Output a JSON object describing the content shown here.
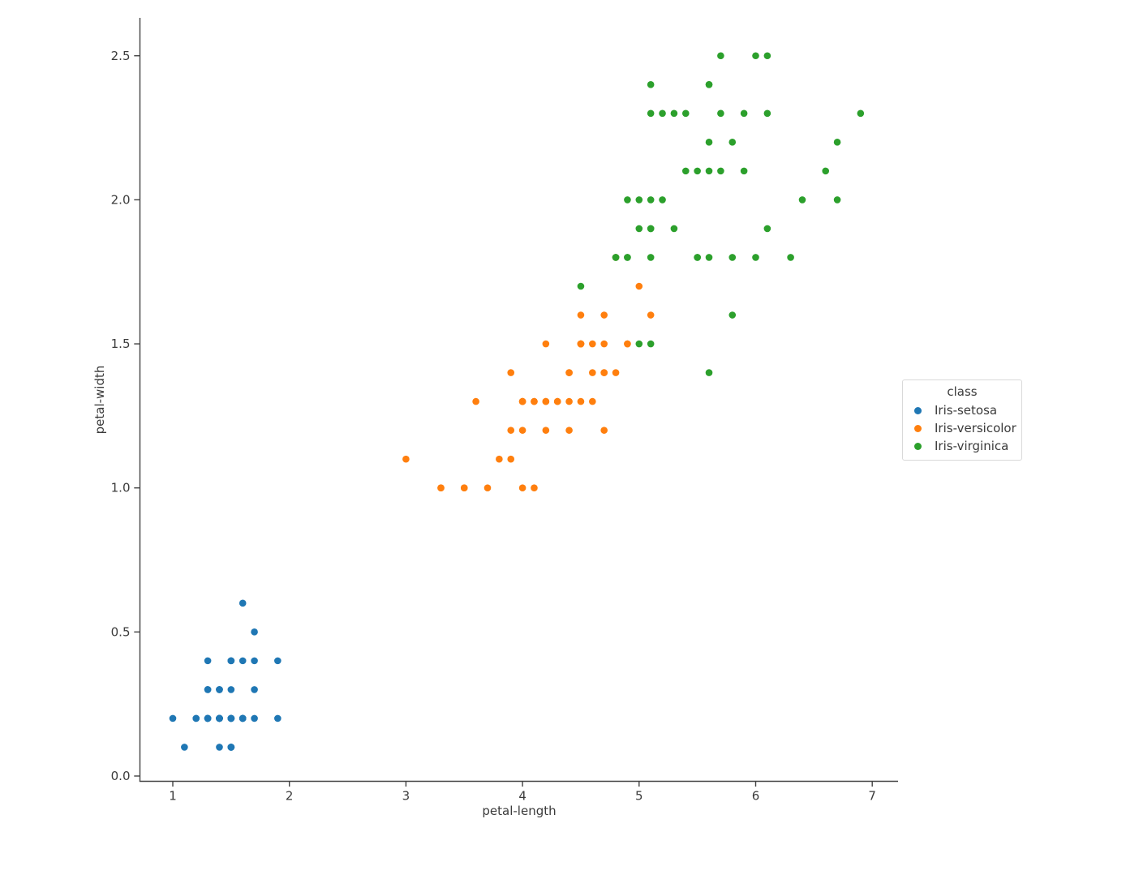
{
  "figure": {
    "background": "#ffffff",
    "text_color": "#3b3b3b",
    "spine_color": "#424242"
  },
  "legend": {
    "title": "class",
    "entries": [
      {
        "label": "Iris-setosa",
        "color": "#1f77b4"
      },
      {
        "label": "Iris-versicolor",
        "color": "#ff7f0e"
      },
      {
        "label": "Iris-virginica",
        "color": "#2ca02c"
      }
    ]
  },
  "chart_data": {
    "type": "scatter",
    "title": "",
    "xlabel": "petal-length",
    "ylabel": "petal-width",
    "xlim": [
      0.71,
      7.22
    ],
    "ylim": [
      -0.02,
      2.63
    ],
    "x_ticks": [
      1,
      2,
      3,
      4,
      5,
      6,
      7
    ],
    "x_tick_labels": [
      "1",
      "2",
      "3",
      "4",
      "5",
      "6",
      "7"
    ],
    "y_ticks": [
      0.0,
      0.5,
      1.0,
      1.5,
      2.0,
      2.5
    ],
    "y_tick_labels": [
      "0.0",
      "0.5",
      "1.0",
      "1.5",
      "2.0",
      "2.5"
    ],
    "grid": false,
    "legend_title": "class",
    "legend_position": "right",
    "series": [
      {
        "name": "Iris-setosa",
        "color": "#1f77b4",
        "points": [
          [
            1.4,
            0.2
          ],
          [
            1.4,
            0.2
          ],
          [
            1.3,
            0.2
          ],
          [
            1.5,
            0.2
          ],
          [
            1.4,
            0.2
          ],
          [
            1.7,
            0.4
          ],
          [
            1.4,
            0.3
          ],
          [
            1.5,
            0.2
          ],
          [
            1.4,
            0.2
          ],
          [
            1.5,
            0.1
          ],
          [
            1.5,
            0.2
          ],
          [
            1.6,
            0.2
          ],
          [
            1.4,
            0.1
          ],
          [
            1.1,
            0.1
          ],
          [
            1.2,
            0.2
          ],
          [
            1.5,
            0.4
          ],
          [
            1.3,
            0.4
          ],
          [
            1.4,
            0.3
          ],
          [
            1.7,
            0.3
          ],
          [
            1.5,
            0.3
          ],
          [
            1.7,
            0.2
          ],
          [
            1.5,
            0.4
          ],
          [
            1.0,
            0.2
          ],
          [
            1.7,
            0.5
          ],
          [
            1.9,
            0.2
          ],
          [
            1.6,
            0.2
          ],
          [
            1.6,
            0.4
          ],
          [
            1.5,
            0.2
          ],
          [
            1.4,
            0.2
          ],
          [
            1.6,
            0.2
          ],
          [
            1.6,
            0.2
          ],
          [
            1.5,
            0.4
          ],
          [
            1.5,
            0.1
          ],
          [
            1.4,
            0.2
          ],
          [
            1.5,
            0.1
          ],
          [
            1.2,
            0.2
          ],
          [
            1.3,
            0.2
          ],
          [
            1.5,
            0.1
          ],
          [
            1.3,
            0.2
          ],
          [
            1.5,
            0.2
          ],
          [
            1.3,
            0.3
          ],
          [
            1.3,
            0.3
          ],
          [
            1.3,
            0.2
          ],
          [
            1.6,
            0.6
          ],
          [
            1.9,
            0.4
          ],
          [
            1.4,
            0.3
          ],
          [
            1.6,
            0.2
          ],
          [
            1.4,
            0.2
          ],
          [
            1.5,
            0.2
          ],
          [
            1.4,
            0.2
          ]
        ]
      },
      {
        "name": "Iris-versicolor",
        "color": "#ff7f0e",
        "points": [
          [
            4.7,
            1.4
          ],
          [
            4.5,
            1.5
          ],
          [
            4.9,
            1.5
          ],
          [
            4.0,
            1.3
          ],
          [
            4.6,
            1.5
          ],
          [
            4.5,
            1.3
          ],
          [
            4.7,
            1.6
          ],
          [
            3.3,
            1.0
          ],
          [
            4.6,
            1.3
          ],
          [
            3.9,
            1.4
          ],
          [
            3.5,
            1.0
          ],
          [
            4.2,
            1.5
          ],
          [
            4.0,
            1.0
          ],
          [
            4.7,
            1.4
          ],
          [
            3.6,
            1.3
          ],
          [
            4.4,
            1.4
          ],
          [
            4.5,
            1.5
          ],
          [
            4.1,
            1.0
          ],
          [
            4.5,
            1.5
          ],
          [
            3.9,
            1.1
          ],
          [
            4.8,
            1.8
          ],
          [
            4.0,
            1.3
          ],
          [
            4.9,
            1.5
          ],
          [
            4.7,
            1.2
          ],
          [
            4.3,
            1.3
          ],
          [
            4.4,
            1.4
          ],
          [
            4.8,
            1.4
          ],
          [
            5.0,
            1.7
          ],
          [
            4.5,
            1.5
          ],
          [
            3.5,
            1.0
          ],
          [
            3.8,
            1.1
          ],
          [
            3.7,
            1.0
          ],
          [
            3.9,
            1.2
          ],
          [
            5.1,
            1.6
          ],
          [
            4.5,
            1.5
          ],
          [
            4.5,
            1.6
          ],
          [
            4.7,
            1.5
          ],
          [
            4.4,
            1.3
          ],
          [
            4.1,
            1.3
          ],
          [
            4.0,
            1.3
          ],
          [
            4.4,
            1.2
          ],
          [
            4.6,
            1.4
          ],
          [
            4.0,
            1.2
          ],
          [
            3.3,
            1.0
          ],
          [
            4.2,
            1.3
          ],
          [
            4.2,
            1.2
          ],
          [
            4.2,
            1.3
          ],
          [
            4.3,
            1.3
          ],
          [
            3.0,
            1.1
          ],
          [
            4.1,
            1.3
          ]
        ]
      },
      {
        "name": "Iris-virginica",
        "color": "#2ca02c",
        "points": [
          [
            6.0,
            2.5
          ],
          [
            5.1,
            1.9
          ],
          [
            5.9,
            2.1
          ],
          [
            5.6,
            1.8
          ],
          [
            5.8,
            2.2
          ],
          [
            6.6,
            2.1
          ],
          [
            4.5,
            1.7
          ],
          [
            6.3,
            1.8
          ],
          [
            5.8,
            1.8
          ],
          [
            6.1,
            2.5
          ],
          [
            5.1,
            2.0
          ],
          [
            5.3,
            1.9
          ],
          [
            5.5,
            2.1
          ],
          [
            5.0,
            2.0
          ],
          [
            5.1,
            2.4
          ],
          [
            5.3,
            2.3
          ],
          [
            5.5,
            1.8
          ],
          [
            6.7,
            2.2
          ],
          [
            6.9,
            2.3
          ],
          [
            5.0,
            1.5
          ],
          [
            5.7,
            2.3
          ],
          [
            4.9,
            2.0
          ],
          [
            6.7,
            2.0
          ],
          [
            4.9,
            1.8
          ],
          [
            5.7,
            2.1
          ],
          [
            6.0,
            1.8
          ],
          [
            4.8,
            1.8
          ],
          [
            4.9,
            1.8
          ],
          [
            5.6,
            2.1
          ],
          [
            5.8,
            1.6
          ],
          [
            6.1,
            1.9
          ],
          [
            6.4,
            2.0
          ],
          [
            5.6,
            2.2
          ],
          [
            5.1,
            1.5
          ],
          [
            5.6,
            1.4
          ],
          [
            6.1,
            2.3
          ],
          [
            5.6,
            2.4
          ],
          [
            5.5,
            1.8
          ],
          [
            4.8,
            1.8
          ],
          [
            5.4,
            2.1
          ],
          [
            5.6,
            2.4
          ],
          [
            5.1,
            2.3
          ],
          [
            5.1,
            1.9
          ],
          [
            5.9,
            2.3
          ],
          [
            5.7,
            2.5
          ],
          [
            5.2,
            2.3
          ],
          [
            5.0,
            1.9
          ],
          [
            5.2,
            2.0
          ],
          [
            5.4,
            2.3
          ],
          [
            5.1,
            1.8
          ]
        ]
      }
    ]
  }
}
